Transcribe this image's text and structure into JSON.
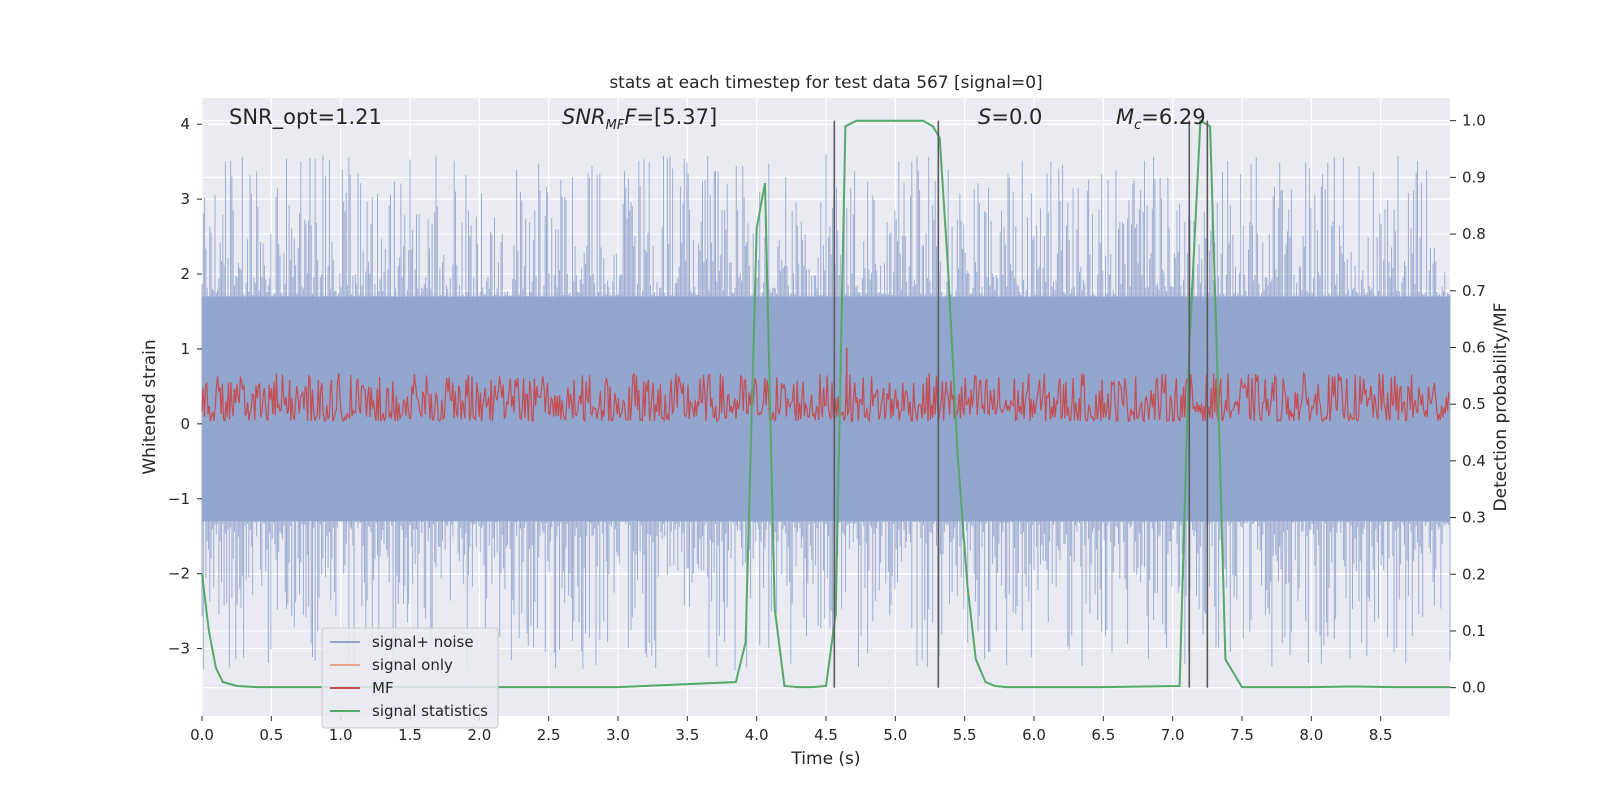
{
  "chart_data": {
    "type": "line",
    "title": "stats at each timestep for test data 567 [signal=0]",
    "xlabel": "Time (s)",
    "ylabel": "Whitened strain",
    "ylabel_right": "Detection probability/MF",
    "xlim": [
      0.0,
      9.0
    ],
    "ylim": [
      -3.9,
      4.35
    ],
    "ylim_right": [
      -0.05,
      1.04
    ],
    "x_ticks": [
      "0.0",
      "0.5",
      "1.0",
      "1.5",
      "2.0",
      "2.5",
      "3.0",
      "3.5",
      "4.0",
      "4.5",
      "5.0",
      "5.5",
      "6.0",
      "6.5",
      "7.0",
      "7.5",
      "8.0",
      "8.5"
    ],
    "y_ticks": [
      "−3",
      "−2",
      "−1",
      "0",
      "1",
      "2",
      "3",
      "4"
    ],
    "y_ticks_right": [
      "0.0",
      "0.1",
      "0.2",
      "0.3",
      "0.4",
      "0.5",
      "0.6",
      "0.7",
      "0.8",
      "0.9",
      "1.0"
    ],
    "grid": true,
    "legend_position": "lower-left",
    "annotations": {
      "snr_opt": "SNR_opt=1.21",
      "snr_mf_main": "SNR",
      "snr_mf_sub": "MF",
      "snr_mf_rest": "=[5.37]",
      "s_main": "S",
      "s_rest": "=0.0",
      "mc_main": "M",
      "mc_sub": "c",
      "mc_rest": "=6.29"
    },
    "series": [
      {
        "name": "signal+ noise",
        "color": "#8fa3cc",
        "description_values": "noise band approx -1.3 to 1.7 with spikes up to 4.0 and down to -3.55"
      },
      {
        "name": "signal only",
        "color": "#e8a386",
        "values": []
      },
      {
        "name": "MF",
        "color": "#c44e52",
        "baseline": 0.5,
        "range": [
          0.47,
          0.6
        ]
      },
      {
        "name": "signal statistics",
        "color": "#55a868",
        "x": [
          0.0,
          0.05,
          0.1,
          0.15,
          0.25,
          0.4,
          1.0,
          2.0,
          3.0,
          3.85,
          3.92,
          4.0,
          4.06,
          4.13,
          4.2,
          4.3,
          4.4,
          4.5,
          4.57,
          4.64,
          4.72,
          4.8,
          5.0,
          5.2,
          5.27,
          5.32,
          5.38,
          5.45,
          5.52,
          5.58,
          5.65,
          5.72,
          5.8,
          6.5,
          7.05,
          7.12,
          7.2,
          7.27,
          7.33,
          7.38,
          7.5,
          8.0,
          8.3,
          8.6,
          9.0
        ],
        "values": [
          0.2,
          0.1,
          0.035,
          0.01,
          0.003,
          0.001,
          0.001,
          0.001,
          0.001,
          0.01,
          0.08,
          0.81,
          0.89,
          0.14,
          0.003,
          0.001,
          0.001,
          0.003,
          0.13,
          0.99,
          1.0,
          1.0,
          1.0,
          1.0,
          0.99,
          0.97,
          0.74,
          0.41,
          0.18,
          0.05,
          0.01,
          0.003,
          0.001,
          0.001,
          0.003,
          0.6,
          1.0,
          0.99,
          0.5,
          0.05,
          0.001,
          0.001,
          0.002,
          0.001,
          0.001
        ]
      }
    ],
    "vertical_lines": [
      4.56,
      5.31,
      7.12,
      7.25
    ]
  },
  "legend": {
    "items": [
      {
        "label": "signal+ noise",
        "color": "#8fa3cc"
      },
      {
        "label": "signal only",
        "color": "#e8a386"
      },
      {
        "label": "MF",
        "color": "#c44e52"
      },
      {
        "label": "signal statistics",
        "color": "#55a868"
      }
    ]
  }
}
